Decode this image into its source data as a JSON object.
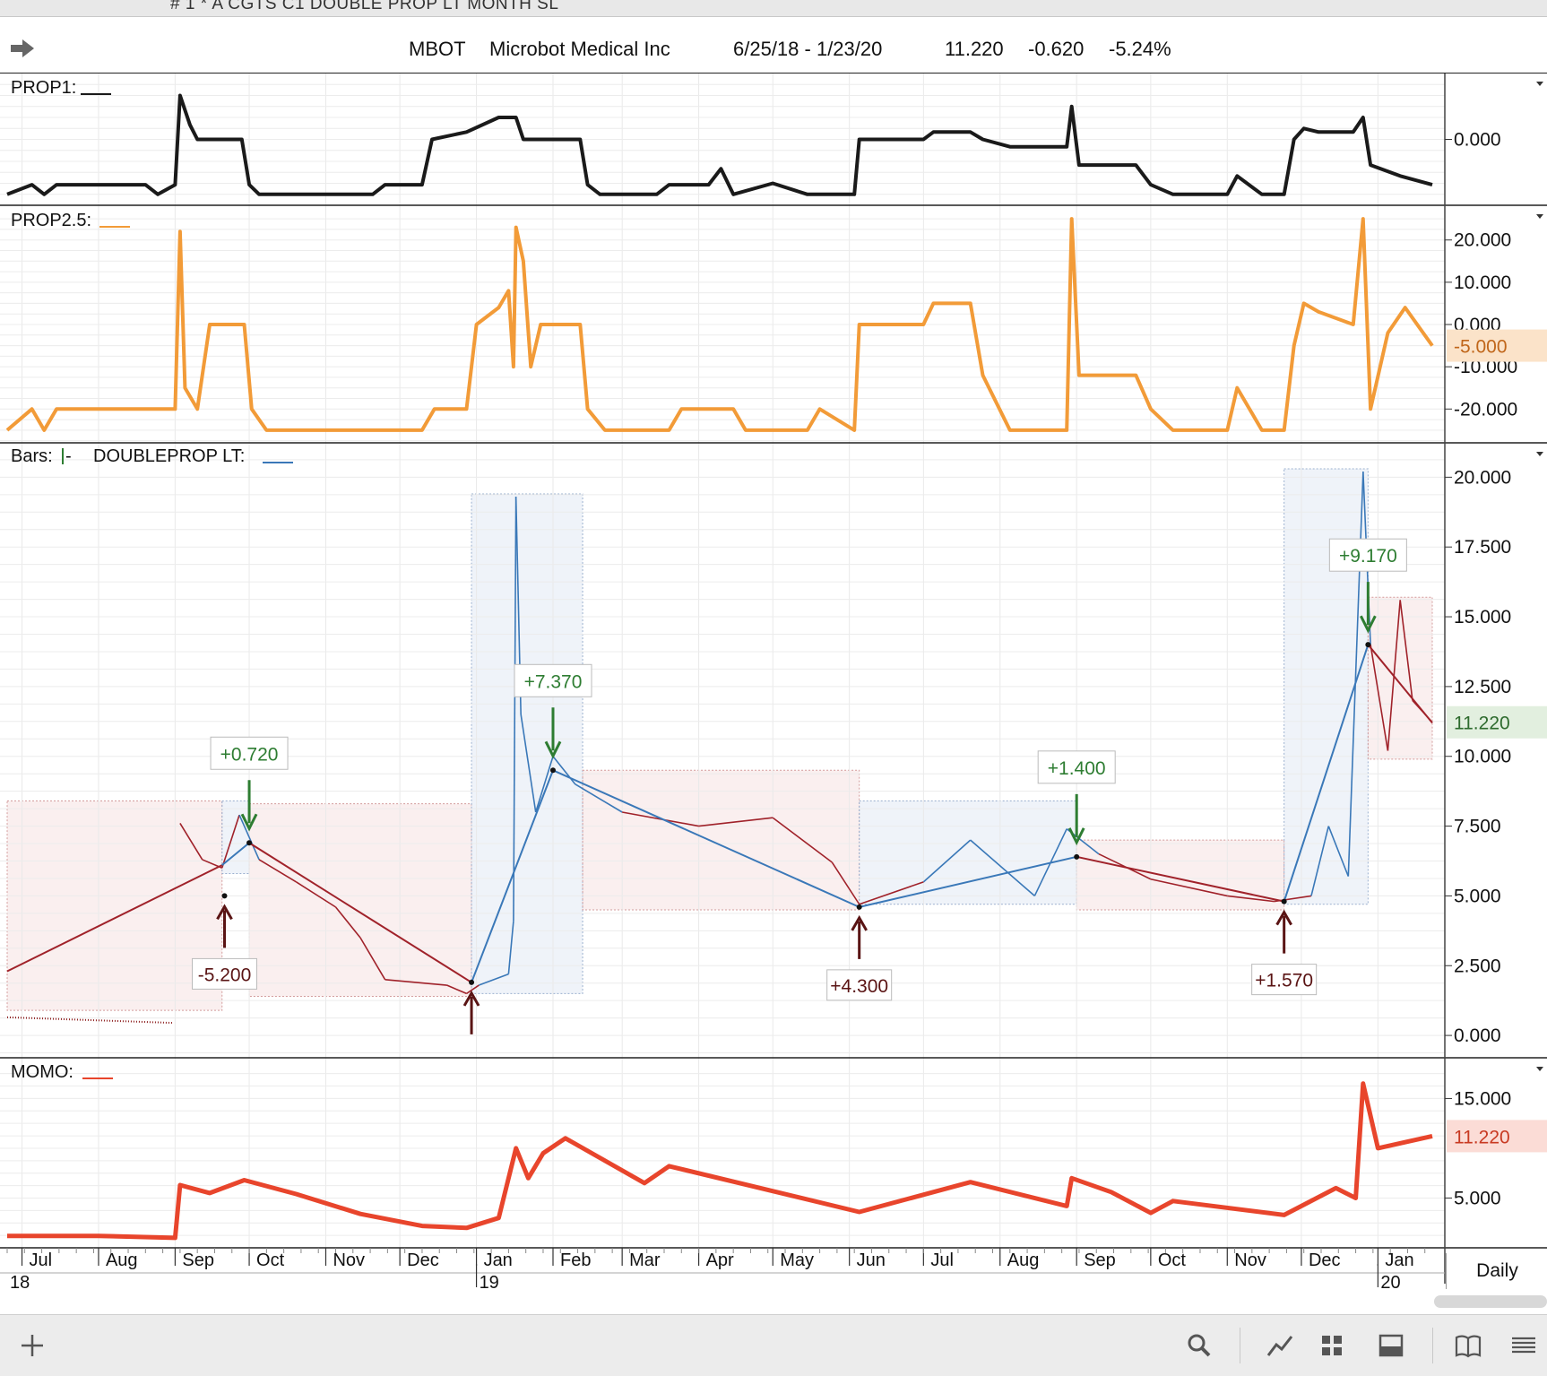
{
  "window": {
    "title": "# 1 * A CGTS  C1 DOUBLE PROP LT  MONTH SL"
  },
  "header": {
    "symbol": "MBOT",
    "name": "Microbot Medical Inc",
    "range": "6/25/18 - 1/23/20",
    "last": "11.220",
    "change": "-0.620",
    "pct": "-5.24%"
  },
  "panes": {
    "prop1": {
      "label": "PROP1:",
      "ticks": [
        "0.000"
      ]
    },
    "prop25": {
      "label": "PROP2.5:",
      "ticks": [
        "20.000",
        "10.000",
        "0.000",
        "-10.000",
        "-20.000"
      ],
      "current": "-5.000"
    },
    "price": {
      "label_bars": "Bars:",
      "label_dp": "DOUBLEPROP LT:",
      "ticks": [
        "20.000",
        "17.500",
        "15.000",
        "12.500",
        "10.000",
        "7.500",
        "5.000",
        "2.500",
        "0.000"
      ],
      "current": "11.220"
    },
    "momo": {
      "label": "MOMO:",
      "ticks": [
        "15.000",
        "5.000"
      ],
      "current": "11.220"
    }
  },
  "xaxis": {
    "months": [
      "Jul",
      "Aug",
      "Sep",
      "Oct",
      "Nov",
      "Dec",
      "Jan",
      "Feb",
      "Mar",
      "Apr",
      "May",
      "Jun",
      "Jul",
      "Aug",
      "Sep",
      "Oct",
      "Nov",
      "Dec",
      "Jan"
    ],
    "years": [
      "18",
      "19",
      "20"
    ]
  },
  "timeframe": "Daily",
  "colors": {
    "prop1": "#1a1a1a",
    "prop25": "#f29b38",
    "momo": "#e8452c",
    "up": "#2e7d32",
    "down": "#8b1a1a",
    "blueline": "#3a78b8",
    "redline": "#a0222a"
  },
  "chart_data": {
    "type": "line",
    "title": "MBOT Microbot Medical Inc 6/25/18 - 1/23/20",
    "xlabel": "",
    "ylabel": "",
    "x_range": [
      "2018-06-25",
      "2020-01-23"
    ],
    "ylim": [
      0,
      20
    ],
    "price_path": [
      {
        "date": "2018-09-03",
        "value": 7.6
      },
      {
        "date": "2018-09-12",
        "value": 6.3
      },
      {
        "date": "2018-09-20",
        "value": 6.0
      },
      {
        "date": "2018-09-27",
        "value": 7.9
      },
      {
        "date": "2018-10-05",
        "value": 6.3
      },
      {
        "date": "2018-10-20",
        "value": 5.5
      },
      {
        "date": "2018-11-05",
        "value": 4.6
      },
      {
        "date": "2018-11-15",
        "value": 3.5
      },
      {
        "date": "2018-11-25",
        "value": 2.0
      },
      {
        "date": "2018-12-20",
        "value": 1.8
      },
      {
        "date": "2018-12-28",
        "value": 1.5
      },
      {
        "date": "2019-01-02",
        "value": 1.8
      },
      {
        "date": "2019-01-14",
        "value": 2.2
      },
      {
        "date": "2019-01-16",
        "value": 4.1
      },
      {
        "date": "2019-01-17",
        "value": 19.3
      },
      {
        "date": "2019-01-19",
        "value": 11.5
      },
      {
        "date": "2019-01-25",
        "value": 8.0
      },
      {
        "date": "2019-02-01",
        "value": 10.0
      },
      {
        "date": "2019-02-10",
        "value": 9.0
      },
      {
        "date": "2019-03-01",
        "value": 8.0
      },
      {
        "date": "2019-04-01",
        "value": 7.5
      },
      {
        "date": "2019-05-01",
        "value": 7.8
      },
      {
        "date": "2019-05-25",
        "value": 6.2
      },
      {
        "date": "2019-06-05",
        "value": 4.7
      },
      {
        "date": "2019-07-01",
        "value": 5.5
      },
      {
        "date": "2019-07-20",
        "value": 7.0
      },
      {
        "date": "2019-08-15",
        "value": 5.0
      },
      {
        "date": "2019-08-28",
        "value": 7.4
      },
      {
        "date": "2019-09-10",
        "value": 6.5
      },
      {
        "date": "2019-10-01",
        "value": 5.6
      },
      {
        "date": "2019-11-01",
        "value": 5.0
      },
      {
        "date": "2019-11-20",
        "value": 4.8
      },
      {
        "date": "2019-12-05",
        "value": 5.0
      },
      {
        "date": "2019-12-12",
        "value": 7.5
      },
      {
        "date": "2019-12-20",
        "value": 5.7
      },
      {
        "date": "2019-12-26",
        "value": 20.2
      },
      {
        "date": "2019-12-29",
        "value": 14.0
      },
      {
        "date": "2020-01-05",
        "value": 10.2
      },
      {
        "date": "2020-01-10",
        "value": 15.6
      },
      {
        "date": "2020-01-15",
        "value": 12.0
      },
      {
        "date": "2020-01-23",
        "value": 11.22
      }
    ],
    "doubleprop_path": [
      {
        "date": "2018-06-25",
        "value": 2.3
      },
      {
        "date": "2018-09-20",
        "value": 6.1
      },
      {
        "date": "2018-10-01",
        "value": 6.9
      },
      {
        "date": "2018-12-30",
        "value": 1.9
      },
      {
        "date": "2019-02-01",
        "value": 9.5
      },
      {
        "date": "2019-06-05",
        "value": 4.6
      },
      {
        "date": "2019-09-01",
        "value": 6.4
      },
      {
        "date": "2019-11-24",
        "value": 4.8
      },
      {
        "date": "2019-12-28",
        "value": 14.0
      },
      {
        "date": "2020-01-23",
        "value": 11.2
      }
    ],
    "trade_labels": [
      {
        "date": "2018-09-21",
        "text": "-5.200",
        "type": "buy"
      },
      {
        "date": "2018-10-01",
        "text": "+0.720",
        "type": "sell"
      },
      {
        "date": "2018-12-30",
        "text": "",
        "type": "buy"
      },
      {
        "date": "2019-02-01",
        "text": "+7.370",
        "type": "sell"
      },
      {
        "date": "2019-06-05",
        "text": "+4.300",
        "type": "buy"
      },
      {
        "date": "2019-09-01",
        "text": "+1.400",
        "type": "sell"
      },
      {
        "date": "2019-11-24",
        "text": "+1.570",
        "type": "buy"
      },
      {
        "date": "2019-12-28",
        "text": "+9.170",
        "type": "sell"
      }
    ],
    "regions": [
      {
        "start": "2018-06-25",
        "end": "2018-09-20",
        "low": 0.9,
        "high": 8.4,
        "type": "short"
      },
      {
        "start": "2018-09-20",
        "end": "2018-10-01",
        "low": 5.8,
        "high": 8.4,
        "type": "long"
      },
      {
        "start": "2018-10-01",
        "end": "2018-12-30",
        "low": 1.4,
        "high": 8.3,
        "type": "short"
      },
      {
        "start": "2018-12-30",
        "end": "2019-02-13",
        "low": 1.5,
        "high": 19.4,
        "type": "long"
      },
      {
        "start": "2019-02-13",
        "end": "2019-06-05",
        "low": 4.5,
        "high": 9.5,
        "type": "short"
      },
      {
        "start": "2019-06-05",
        "end": "2019-09-01",
        "low": 4.7,
        "high": 8.4,
        "type": "long"
      },
      {
        "start": "2019-09-01",
        "end": "2019-11-24",
        "low": 4.5,
        "high": 7.0,
        "type": "short"
      },
      {
        "start": "2019-11-24",
        "end": "2019-12-28",
        "low": 4.7,
        "high": 20.3,
        "type": "long"
      },
      {
        "start": "2019-12-28",
        "end": "2020-01-23",
        "low": 9.9,
        "high": 15.7,
        "type": "short"
      }
    ],
    "prop1": [
      {
        "date": "2018-06-25",
        "value": -0.75
      },
      {
        "date": "2018-07-05",
        "value": -0.62
      },
      {
        "date": "2018-07-10",
        "value": -0.75
      },
      {
        "date": "2018-07-15",
        "value": -0.62
      },
      {
        "date": "2018-08-20",
        "value": -0.62
      },
      {
        "date": "2018-08-25",
        "value": -0.75
      },
      {
        "date": "2018-09-01",
        "value": -0.62
      },
      {
        "date": "2018-09-03",
        "value": 0.6
      },
      {
        "date": "2018-09-07",
        "value": 0.2
      },
      {
        "date": "2018-09-10",
        "value": 0.0
      },
      {
        "date": "2018-09-28",
        "value": 0.0
      },
      {
        "date": "2018-10-01",
        "value": -0.62
      },
      {
        "date": "2018-10-05",
        "value": -0.75
      },
      {
        "date": "2018-11-20",
        "value": -0.75
      },
      {
        "date": "2018-11-25",
        "value": -0.62
      },
      {
        "date": "2018-12-10",
        "value": -0.62
      },
      {
        "date": "2018-12-14",
        "value": 0.0
      },
      {
        "date": "2018-12-28",
        "value": 0.1
      },
      {
        "date": "2019-01-10",
        "value": 0.3
      },
      {
        "date": "2019-01-17",
        "value": 0.3
      },
      {
        "date": "2019-01-20",
        "value": 0.0
      },
      {
        "date": "2019-02-12",
        "value": 0.0
      },
      {
        "date": "2019-02-15",
        "value": -0.62
      },
      {
        "date": "2019-02-20",
        "value": -0.75
      },
      {
        "date": "2019-03-15",
        "value": -0.75
      },
      {
        "date": "2019-03-20",
        "value": -0.62
      },
      {
        "date": "2019-04-05",
        "value": -0.62
      },
      {
        "date": "2019-04-10",
        "value": -0.4
      },
      {
        "date": "2019-04-15",
        "value": -0.75
      },
      {
        "date": "2019-05-01",
        "value": -0.6
      },
      {
        "date": "2019-05-15",
        "value": -0.75
      },
      {
        "date": "2019-06-03",
        "value": -0.75
      },
      {
        "date": "2019-06-05",
        "value": 0.0
      },
      {
        "date": "2019-07-01",
        "value": 0.0
      },
      {
        "date": "2019-07-05",
        "value": 0.1
      },
      {
        "date": "2019-07-20",
        "value": 0.1
      },
      {
        "date": "2019-07-25",
        "value": 0.0
      },
      {
        "date": "2019-08-05",
        "value": -0.1
      },
      {
        "date": "2019-08-28",
        "value": -0.1
      },
      {
        "date": "2019-08-30",
        "value": 0.45
      },
      {
        "date": "2019-09-02",
        "value": -0.35
      },
      {
        "date": "2019-09-25",
        "value": -0.35
      },
      {
        "date": "2019-10-01",
        "value": -0.62
      },
      {
        "date": "2019-10-10",
        "value": -0.75
      },
      {
        "date": "2019-11-01",
        "value": -0.75
      },
      {
        "date": "2019-11-05",
        "value": -0.5
      },
      {
        "date": "2019-11-15",
        "value": -0.75
      },
      {
        "date": "2019-11-24",
        "value": -0.75
      },
      {
        "date": "2019-11-28",
        "value": 0.0
      },
      {
        "date": "2019-12-02",
        "value": 0.15
      },
      {
        "date": "2019-12-08",
        "value": 0.1
      },
      {
        "date": "2019-12-22",
        "value": 0.1
      },
      {
        "date": "2019-12-26",
        "value": 0.3
      },
      {
        "date": "2019-12-29",
        "value": -0.35
      },
      {
        "date": "2020-01-10",
        "value": -0.5
      },
      {
        "date": "2020-01-23",
        "value": -0.62
      }
    ],
    "prop25": [
      {
        "date": "2018-06-25",
        "value": -25
      },
      {
        "date": "2018-07-05",
        "value": -20
      },
      {
        "date": "2018-07-10",
        "value": -25
      },
      {
        "date": "2018-07-15",
        "value": -20
      },
      {
        "date": "2018-08-25",
        "value": -20
      },
      {
        "date": "2018-09-01",
        "value": -20
      },
      {
        "date": "2018-09-03",
        "value": 22
      },
      {
        "date": "2018-09-05",
        "value": -15
      },
      {
        "date": "2018-09-10",
        "value": -20
      },
      {
        "date": "2018-09-15",
        "value": 0
      },
      {
        "date": "2018-09-29",
        "value": 0
      },
      {
        "date": "2018-10-02",
        "value": -20
      },
      {
        "date": "2018-10-08",
        "value": -25
      },
      {
        "date": "2018-12-10",
        "value": -25
      },
      {
        "date": "2018-12-15",
        "value": -20
      },
      {
        "date": "2018-12-28",
        "value": -20
      },
      {
        "date": "2019-01-01",
        "value": 0
      },
      {
        "date": "2019-01-10",
        "value": 4
      },
      {
        "date": "2019-01-14",
        "value": 8
      },
      {
        "date": "2019-01-16",
        "value": -10
      },
      {
        "date": "2019-01-17",
        "value": 23
      },
      {
        "date": "2019-01-20",
        "value": 15
      },
      {
        "date": "2019-01-23",
        "value": -10
      },
      {
        "date": "2019-01-27",
        "value": 0
      },
      {
        "date": "2019-02-12",
        "value": 0
      },
      {
        "date": "2019-02-15",
        "value": -20
      },
      {
        "date": "2019-02-22",
        "value": -25
      },
      {
        "date": "2019-03-20",
        "value": -25
      },
      {
        "date": "2019-03-25",
        "value": -20
      },
      {
        "date": "2019-04-15",
        "value": -20
      },
      {
        "date": "2019-04-20",
        "value": -25
      },
      {
        "date": "2019-05-15",
        "value": -25
      },
      {
        "date": "2019-05-20",
        "value": -20
      },
      {
        "date": "2019-06-03",
        "value": -25
      },
      {
        "date": "2019-06-05",
        "value": 0
      },
      {
        "date": "2019-07-01",
        "value": 0
      },
      {
        "date": "2019-07-05",
        "value": 5
      },
      {
        "date": "2019-07-20",
        "value": 5
      },
      {
        "date": "2019-07-25",
        "value": -12
      },
      {
        "date": "2019-08-05",
        "value": -25
      },
      {
        "date": "2019-08-28",
        "value": -25
      },
      {
        "date": "2019-08-30",
        "value": 25
      },
      {
        "date": "2019-09-02",
        "value": -12
      },
      {
        "date": "2019-09-25",
        "value": -12
      },
      {
        "date": "2019-10-01",
        "value": -20
      },
      {
        "date": "2019-10-10",
        "value": -25
      },
      {
        "date": "2019-11-01",
        "value": -25
      },
      {
        "date": "2019-11-05",
        "value": -15
      },
      {
        "date": "2019-11-15",
        "value": -25
      },
      {
        "date": "2019-11-24",
        "value": -25
      },
      {
        "date": "2019-11-28",
        "value": -5
      },
      {
        "date": "2019-12-02",
        "value": 5
      },
      {
        "date": "2019-12-08",
        "value": 3
      },
      {
        "date": "2019-12-22",
        "value": 0
      },
      {
        "date": "2019-12-26",
        "value": 25
      },
      {
        "date": "2019-12-29",
        "value": -20
      },
      {
        "date": "2020-01-05",
        "value": -2
      },
      {
        "date": "2020-01-12",
        "value": 4
      },
      {
        "date": "2020-01-23",
        "value": -5
      }
    ],
    "momo": [
      {
        "date": "2018-06-25",
        "value": 1.2
      },
      {
        "date": "2018-08-01",
        "value": 1.2
      },
      {
        "date": "2018-09-01",
        "value": 1.0
      },
      {
        "date": "2018-09-03",
        "value": 6.3
      },
      {
        "date": "2018-09-15",
        "value": 5.5
      },
      {
        "date": "2018-09-29",
        "value": 6.8
      },
      {
        "date": "2018-10-20",
        "value": 5.4
      },
      {
        "date": "2018-11-15",
        "value": 3.4
      },
      {
        "date": "2018-12-10",
        "value": 2.2
      },
      {
        "date": "2018-12-28",
        "value": 2.0
      },
      {
        "date": "2019-01-10",
        "value": 3.0
      },
      {
        "date": "2019-01-17",
        "value": 10.0
      },
      {
        "date": "2019-01-22",
        "value": 7.0
      },
      {
        "date": "2019-01-28",
        "value": 9.5
      },
      {
        "date": "2019-02-06",
        "value": 11.0
      },
      {
        "date": "2019-03-10",
        "value": 6.5
      },
      {
        "date": "2019-03-20",
        "value": 8.2
      },
      {
        "date": "2019-06-05",
        "value": 3.6
      },
      {
        "date": "2019-07-20",
        "value": 6.6
      },
      {
        "date": "2019-08-28",
        "value": 4.2
      },
      {
        "date": "2019-08-30",
        "value": 7.0
      },
      {
        "date": "2019-09-15",
        "value": 5.6
      },
      {
        "date": "2019-10-01",
        "value": 3.5
      },
      {
        "date": "2019-10-10",
        "value": 4.7
      },
      {
        "date": "2019-11-24",
        "value": 3.3
      },
      {
        "date": "2019-12-15",
        "value": 6.0
      },
      {
        "date": "2019-12-23",
        "value": 5.0
      },
      {
        "date": "2019-12-26",
        "value": 16.5
      },
      {
        "date": "2020-01-01",
        "value": 10.0
      },
      {
        "date": "2020-01-23",
        "value": 11.22
      }
    ]
  }
}
